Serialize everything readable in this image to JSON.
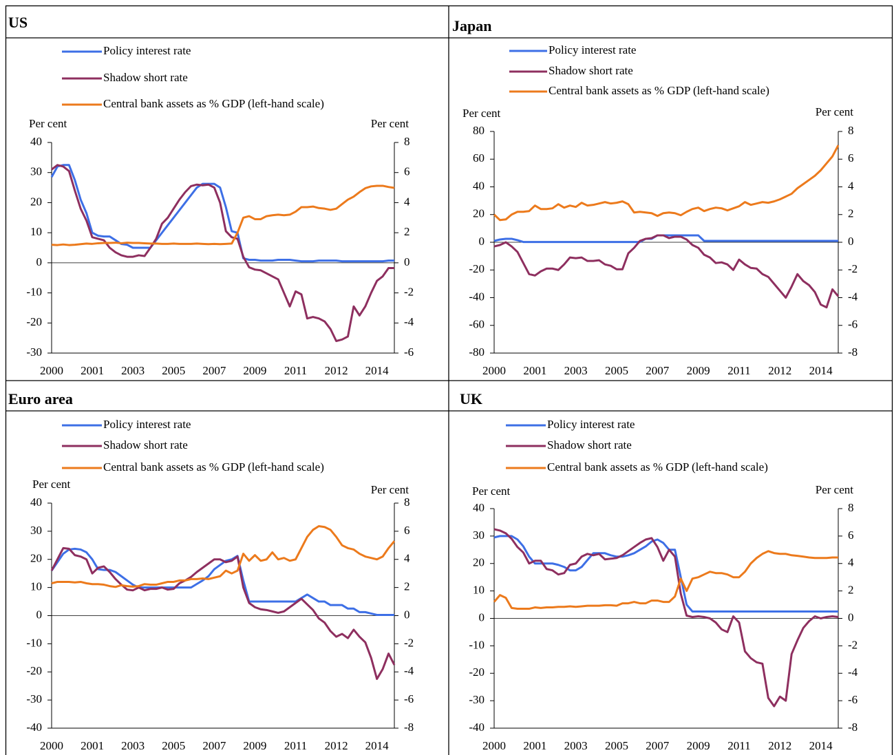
{
  "chart_data": [
    {
      "type": "line",
      "title": "US",
      "y_label": "Per cent",
      "y2_label": "Per cent",
      "categories": [
        "2000",
        null,
        null,
        null,
        null,
        null,
        null,
        "2001",
        null,
        null,
        null,
        null,
        null,
        null,
        "2003",
        null,
        null,
        null,
        null,
        null,
        null,
        "2005",
        null,
        null,
        null,
        null,
        null,
        null,
        "2007",
        null,
        null,
        null,
        null,
        null,
        null,
        "2009",
        null,
        null,
        null,
        null,
        null,
        null,
        "2011",
        null,
        null,
        null,
        null,
        null,
        null,
        "2012",
        null,
        null,
        null,
        null,
        null,
        null,
        "2014",
        null,
        null,
        null
      ],
      "ylim": [
        -30,
        40
      ],
      "yticks": [
        -30,
        -20,
        -10,
        0,
        10,
        20,
        30,
        40
      ],
      "y2lim": [
        -6,
        8
      ],
      "y2ticks": [
        -6,
        -4,
        -2,
        0,
        2,
        4,
        6,
        8
      ],
      "series": [
        {
          "name": "Policy interest rate",
          "color": "#3d6fe6",
          "axis": "y2",
          "values": [
            5.7,
            6.4,
            6.5,
            6.5,
            5.5,
            4.2,
            3.3,
            2.0,
            1.8,
            1.75,
            1.75,
            1.5,
            1.25,
            1.2,
            1.0,
            1.0,
            1.0,
            1.0,
            1.5,
            2.0,
            2.5,
            3.0,
            3.5,
            4.0,
            4.5,
            5.0,
            5.25,
            5.25,
            5.25,
            5.0,
            3.7,
            2.1,
            2.0,
            0.3,
            0.2,
            0.2,
            0.15,
            0.15,
            0.15,
            0.2,
            0.2,
            0.2,
            0.15,
            0.1,
            0.1,
            0.1,
            0.15,
            0.15,
            0.15,
            0.15,
            0.1,
            0.1,
            0.1,
            0.1,
            0.1,
            0.1,
            0.1,
            0.1,
            0.15,
            0.15
          ]
        },
        {
          "name": "Shadow short rate",
          "color": "#8e2f5f",
          "axis": "y2",
          "values": [
            6.2,
            6.5,
            6.4,
            6.1,
            4.8,
            3.6,
            2.8,
            1.7,
            1.6,
            1.5,
            1.0,
            0.7,
            0.5,
            0.4,
            0.4,
            0.5,
            0.45,
            1.0,
            1.6,
            2.6,
            3.0,
            3.6,
            4.2,
            4.7,
            5.1,
            5.2,
            5.15,
            5.2,
            5.0,
            4.0,
            2.1,
            1.7,
            1.6,
            0.4,
            -0.3,
            -0.45,
            -0.5,
            -0.7,
            -0.9,
            -1.1,
            -2.0,
            -2.9,
            -1.9,
            -2.1,
            -3.7,
            -3.6,
            -3.7,
            -3.9,
            -4.4,
            -5.2,
            -5.1,
            -4.9,
            -2.9,
            -3.5,
            -2.9,
            -2.0,
            -1.2,
            -0.9,
            -0.35,
            -0.35
          ]
        },
        {
          "name": "Central bank assets as % GDP (left-hand scale)",
          "color": "#ec7a1c",
          "values": [
            6,
            5.9,
            6.1,
            5.9,
            6.0,
            6.2,
            6.4,
            6.3,
            6.5,
            6.6,
            6.6,
            6.7,
            6.5,
            6.7,
            6.6,
            6.6,
            6.5,
            6.4,
            6.4,
            6.3,
            6.3,
            6.4,
            6.3,
            6.3,
            6.3,
            6.4,
            6.3,
            6.2,
            6.3,
            6.2,
            6.3,
            6.4,
            10,
            15,
            15.5,
            14.5,
            14.5,
            15.5,
            15.8,
            16,
            15.8,
            16.0,
            17.0,
            18.5,
            18.5,
            18.7,
            18.2,
            18.0,
            17.6,
            18.0,
            19.5,
            21,
            22,
            23.5,
            24.8,
            25.4,
            25.6,
            25.6,
            25.2,
            24.9
          ]
        }
      ]
    },
    {
      "type": "line",
      "title": "Japan",
      "y_label": "Per cent",
      "y2_label": "Per cent",
      "categories": [
        "2000",
        null,
        null,
        null,
        null,
        null,
        null,
        "2001",
        null,
        null,
        null,
        null,
        null,
        null,
        "2003",
        null,
        null,
        null,
        null,
        null,
        null,
        "2005",
        null,
        null,
        null,
        null,
        null,
        null,
        "2007",
        null,
        null,
        null,
        null,
        null,
        null,
        "2009",
        null,
        null,
        null,
        null,
        null,
        null,
        "2011",
        null,
        null,
        null,
        null,
        null,
        null,
        "2012",
        null,
        null,
        null,
        null,
        null,
        null,
        "2014",
        null,
        null,
        null
      ],
      "ylim": [
        -80,
        80
      ],
      "yticks": [
        -80,
        -60,
        -40,
        -20,
        0,
        20,
        40,
        60,
        80
      ],
      "y2lim": [
        -8,
        8
      ],
      "y2ticks": [
        -8,
        -6,
        -4,
        -2,
        0,
        2,
        4,
        6,
        8
      ],
      "series": [
        {
          "name": "Policy interest rate",
          "color": "#3d6fe6",
          "axis": "y2",
          "values": [
            0.1,
            0.2,
            0.25,
            0.25,
            0.15,
            0.02,
            0.02,
            0.02,
            0.02,
            0.02,
            0.02,
            0.02,
            0.02,
            0.02,
            0.02,
            0.02,
            0.02,
            0.02,
            0.02,
            0.02,
            0.02,
            0.02,
            0.02,
            0.02,
            0.02,
            0.02,
            0.25,
            0.25,
            0.5,
            0.5,
            0.5,
            0.5,
            0.5,
            0.5,
            0.5,
            0.5,
            0.1,
            0.1,
            0.1,
            0.1,
            0.1,
            0.1,
            0.1,
            0.1,
            0.1,
            0.1,
            0.1,
            0.1,
            0.1,
            0.1,
            0.1,
            0.1,
            0.1,
            0.1,
            0.1,
            0.1,
            0.1,
            0.1,
            0.1,
            0.1
          ]
        },
        {
          "name": "Shadow short rate",
          "color": "#8e2f5f",
          "axis": "y2",
          "values": [
            -0.3,
            -0.2,
            0.0,
            -0.3,
            -0.7,
            -1.5,
            -2.3,
            -2.4,
            -2.1,
            -1.9,
            -1.9,
            -2.0,
            -1.6,
            -1.1,
            -1.15,
            -1.1,
            -1.35,
            -1.35,
            -1.3,
            -1.6,
            -1.7,
            -1.95,
            -1.95,
            -0.8,
            -0.4,
            0.1,
            0.25,
            0.3,
            0.5,
            0.5,
            0.3,
            0.4,
            0.4,
            0.2,
            -0.2,
            -0.4,
            -0.9,
            -1.1,
            -1.5,
            -1.45,
            -1.6,
            -2.0,
            -1.25,
            -1.6,
            -1.85,
            -1.9,
            -2.3,
            -2.5,
            -3.0,
            -3.5,
            -4.0,
            -3.2,
            -2.3,
            -2.8,
            -3.1,
            -3.6,
            -4.5,
            -4.7,
            -3.4,
            -3.9
          ]
        },
        {
          "name": "Central bank assets as % GDP (left-hand scale)",
          "color": "#ec7a1c",
          "values": [
            20,
            16,
            16.5,
            20,
            22,
            22,
            22.5,
            26.5,
            24,
            24,
            24.5,
            27.5,
            25,
            26.5,
            25.5,
            28.5,
            26.5,
            27,
            28,
            29,
            28,
            28.5,
            29.5,
            27.5,
            21.5,
            22,
            21.5,
            21,
            19,
            21,
            21.5,
            21,
            19.5,
            22,
            24,
            25,
            22.5,
            24,
            25,
            24.5,
            23,
            24.5,
            26,
            29,
            27,
            28,
            29,
            28.5,
            29.5,
            31,
            33,
            35,
            39,
            42,
            45,
            48,
            52,
            57,
            62,
            70
          ]
        }
      ]
    },
    {
      "type": "line",
      "title": "Euro area",
      "y_label": "Per cent",
      "y2_label": "Per cent",
      "categories": [
        "2000",
        null,
        null,
        null,
        null,
        null,
        null,
        "2001",
        null,
        null,
        null,
        null,
        null,
        null,
        "2003",
        null,
        null,
        null,
        null,
        null,
        null,
        "2005",
        null,
        null,
        null,
        null,
        null,
        null,
        "2007",
        null,
        null,
        null,
        null,
        null,
        null,
        "2009",
        null,
        null,
        null,
        null,
        null,
        null,
        "2011",
        null,
        null,
        null,
        null,
        null,
        null,
        "2012",
        null,
        null,
        null,
        null,
        null,
        null,
        "2014",
        null,
        null,
        null
      ],
      "ylim": [
        -40,
        40
      ],
      "yticks": [
        -40,
        -30,
        -20,
        -10,
        0,
        10,
        20,
        30,
        40
      ],
      "y2lim": [
        -8,
        8
      ],
      "y2ticks": [
        -8,
        -6,
        -4,
        -2,
        0,
        2,
        4,
        6,
        8
      ],
      "series": [
        {
          "name": "Policy interest rate",
          "color": "#3d6fe6",
          "axis": "y2",
          "values": [
            3.2,
            3.8,
            4.4,
            4.7,
            4.75,
            4.7,
            4.5,
            4.0,
            3.3,
            3.25,
            3.25,
            3.1,
            2.8,
            2.5,
            2.2,
            2.0,
            2.0,
            2.0,
            2.0,
            2.0,
            2.0,
            2.0,
            2.0,
            2.0,
            2.0,
            2.25,
            2.5,
            2.8,
            3.3,
            3.6,
            3.9,
            4.0,
            4.25,
            2.5,
            1.0,
            1.0,
            1.0,
            1.0,
            1.0,
            1.0,
            1.0,
            1.0,
            1.0,
            1.25,
            1.5,
            1.25,
            1.0,
            1.0,
            0.75,
            0.75,
            0.75,
            0.5,
            0.5,
            0.25,
            0.25,
            0.15,
            0.05,
            0.05,
            0.05,
            0.05
          ]
        },
        {
          "name": "Shadow short rate",
          "color": "#8e2f5f",
          "axis": "y2",
          "values": [
            3.2,
            4.0,
            4.8,
            4.75,
            4.3,
            4.2,
            4.0,
            3.0,
            3.4,
            3.5,
            3.1,
            2.6,
            2.2,
            1.85,
            1.8,
            2.0,
            1.8,
            1.9,
            1.9,
            2.0,
            1.85,
            1.9,
            2.3,
            2.5,
            2.75,
            3.1,
            3.4,
            3.7,
            4.0,
            4.0,
            3.8,
            3.9,
            4.2,
            2.0,
            0.9,
            0.6,
            0.45,
            0.4,
            0.3,
            0.2,
            0.3,
            0.6,
            0.9,
            1.2,
            0.8,
            0.4,
            -0.2,
            -0.5,
            -1.1,
            -1.5,
            -1.3,
            -1.6,
            -1.0,
            -1.5,
            -1.9,
            -3.0,
            -4.5,
            -3.8,
            -2.7,
            -3.5
          ]
        },
        {
          "name": "Central bank assets as % GDP (left-hand scale)",
          "color": "#ec7a1c",
          "values": [
            11.5,
            12,
            12,
            12,
            11.8,
            12,
            11.5,
            11.2,
            11.2,
            11,
            10.5,
            10.2,
            10.8,
            10.5,
            10.3,
            10.5,
            11.2,
            11,
            11,
            11.5,
            12,
            12,
            12.5,
            12.5,
            13,
            13,
            13.2,
            13,
            13.5,
            14,
            16,
            15,
            16,
            22,
            19.5,
            21.5,
            19.5,
            20,
            22.5,
            20,
            20.5,
            19.5,
            20,
            24,
            28,
            30.5,
            31.8,
            31.5,
            30.5,
            28,
            25,
            24,
            23.5,
            22,
            21,
            20.5,
            20,
            21,
            24,
            26.5
          ]
        }
      ]
    },
    {
      "type": "line",
      "title": "UK",
      "y_label": "Per cent",
      "y2_label": "Per cent",
      "categories": [
        "2000",
        null,
        null,
        null,
        null,
        null,
        null,
        "2001",
        null,
        null,
        null,
        null,
        null,
        null,
        "2003",
        null,
        null,
        null,
        null,
        null,
        null,
        "2005",
        null,
        null,
        null,
        null,
        null,
        null,
        "2007",
        null,
        null,
        null,
        null,
        null,
        null,
        "2009",
        null,
        null,
        null,
        null,
        null,
        null,
        "2011",
        null,
        null,
        null,
        null,
        null,
        null,
        "2012",
        null,
        null,
        null,
        null,
        null,
        null,
        "2014",
        null,
        null,
        null
      ],
      "ylim": [
        -40,
        40
      ],
      "yticks": [
        -40,
        -30,
        -20,
        -10,
        0,
        10,
        20,
        30,
        40
      ],
      "y2lim": [
        -8,
        8
      ],
      "y2ticks": [
        -8,
        -6,
        -4,
        -2,
        0,
        2,
        4,
        6,
        8
      ],
      "series": [
        {
          "name": "Policy interest rate",
          "color": "#3d6fe6",
          "axis": "y2",
          "values": [
            5.9,
            6.0,
            6.0,
            6.0,
            5.75,
            5.25,
            4.5,
            4.0,
            4.0,
            4.0,
            4.0,
            3.9,
            3.75,
            3.5,
            3.5,
            3.75,
            4.25,
            4.75,
            4.75,
            4.75,
            4.6,
            4.5,
            4.5,
            4.6,
            4.75,
            5.0,
            5.25,
            5.6,
            5.75,
            5.5,
            5.0,
            5.0,
            3.0,
            1.0,
            0.5,
            0.5,
            0.5,
            0.5,
            0.5,
            0.5,
            0.5,
            0.5,
            0.5,
            0.5,
            0.5,
            0.5,
            0.5,
            0.5,
            0.5,
            0.5,
            0.5,
            0.5,
            0.5,
            0.5,
            0.5,
            0.5,
            0.5,
            0.5,
            0.5,
            0.5
          ]
        },
        {
          "name": "Shadow short rate",
          "color": "#8e2f5f",
          "axis": "y2",
          "values": [
            6.5,
            6.4,
            6.2,
            5.8,
            5.2,
            4.8,
            4.0,
            4.2,
            4.2,
            3.6,
            3.5,
            3.2,
            3.3,
            3.9,
            4.0,
            4.5,
            4.7,
            4.6,
            4.7,
            4.3,
            4.35,
            4.4,
            4.6,
            4.9,
            5.2,
            5.5,
            5.75,
            5.85,
            5.2,
            4.2,
            5.0,
            4.5,
            1.8,
            0.2,
            0.1,
            0.15,
            0.1,
            0.0,
            -0.3,
            -0.8,
            -1.0,
            0.15,
            -0.3,
            -2.4,
            -2.9,
            -3.2,
            -3.3,
            -5.8,
            -6.4,
            -5.7,
            -6.0,
            -2.6,
            -1.6,
            -0.7,
            -0.2,
            0.15,
            0.0,
            0.1,
            0.15,
            0.1
          ]
        },
        {
          "name": "Central bank assets as % GDP (left-hand scale)",
          "color": "#ec7a1c",
          "values": [
            6,
            8.5,
            7.5,
            3.8,
            3.5,
            3.5,
            3.5,
            4,
            3.8,
            4,
            4,
            4.2,
            4.2,
            4.4,
            4.2,
            4.4,
            4.6,
            4.6,
            4.6,
            4.8,
            4.8,
            4.6,
            5.5,
            5.5,
            6,
            5.5,
            5.5,
            6.5,
            6.5,
            6,
            6,
            8,
            14.5,
            10,
            14.5,
            15,
            16,
            17,
            16.5,
            16.5,
            16,
            15,
            15,
            17,
            20,
            22,
            23.5,
            24.5,
            23.8,
            23.5,
            23.5,
            23,
            22.8,
            22.5,
            22.2,
            22.0,
            22.0,
            22.0,
            22.2,
            22.2
          ]
        }
      ]
    }
  ]
}
